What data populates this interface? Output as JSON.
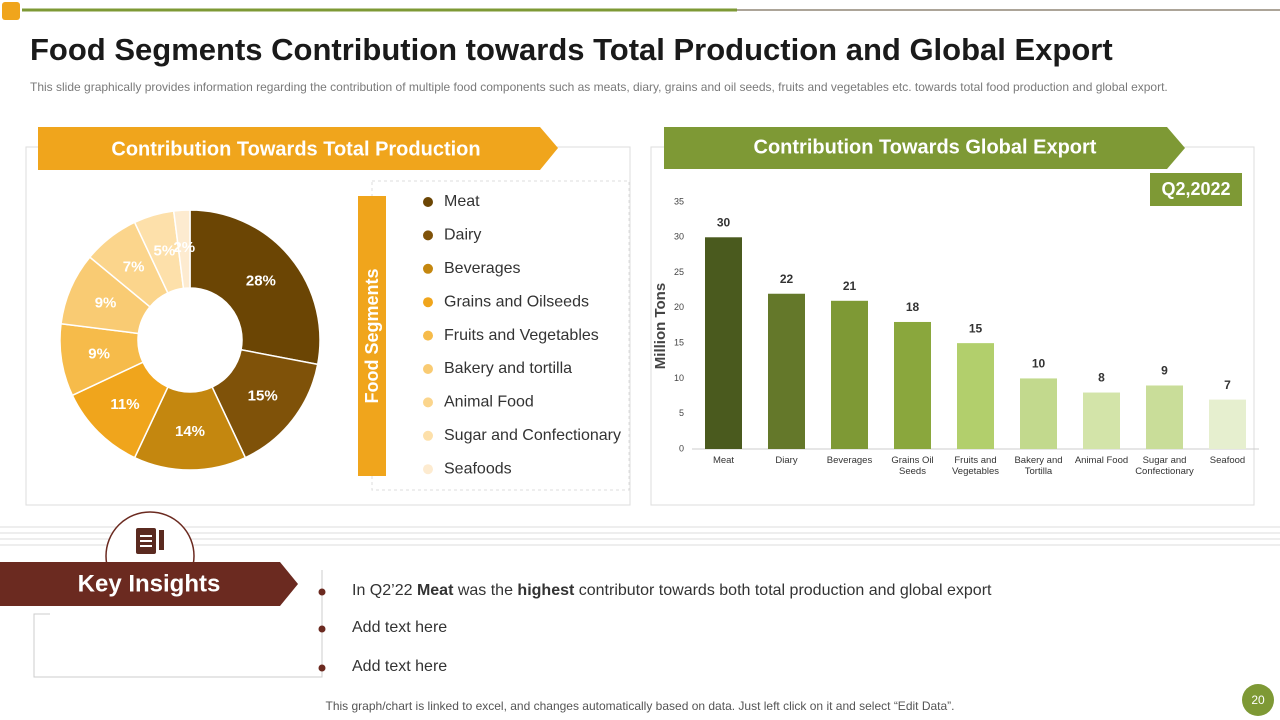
{
  "title": "Food Segments Contribution towards Total Production and Global Export",
  "subtitle": "This slide graphically provides information regarding the contribution of multiple food components such as meats, diary, grains and oil seeds, fruits and vegetables etc. towards total food production and global export.",
  "chart_data": [
    {
      "type": "pie",
      "title": "Contribution Towards Total Production",
      "legend_title": "Food Segments",
      "categories": [
        "Meat",
        "Dairy",
        "Beverages",
        "Grains and Oilseeds",
        "Fruits and Vegetables",
        "Bakery and tortilla",
        "Animal Food",
        "Sugar and Confectionary",
        "Seafoods"
      ],
      "values": [
        28,
        15,
        14,
        11,
        9,
        9,
        7,
        5,
        2
      ],
      "value_labels": [
        "28%",
        "15%",
        "14%",
        "11%",
        "9%",
        "9%",
        "7%",
        "5%",
        "2%"
      ],
      "colors": [
        "#6b4504",
        "#7f5209",
        "#c4870f",
        "#f0a51c",
        "#f6bb4a",
        "#f9cb73",
        "#fbd58c",
        "#fde0aa",
        "#fdebd0"
      ]
    },
    {
      "type": "bar",
      "title": "Contribution Towards Global Export",
      "badge": "Q2,2022",
      "y_label": "Million Tons",
      "categories": [
        "Meat",
        "Diary",
        "Beverages",
        "Grains Oil Seeds",
        "Fruits and Vegetables",
        "Bakery and Tortilla",
        "Animal Food",
        "Sugar and Confectionary",
        "Seafood"
      ],
      "values": [
        30,
        22,
        21,
        18,
        15,
        10,
        8,
        9,
        7
      ],
      "colors": [
        "#4a5a1e",
        "#64782a",
        "#7e9935",
        "#8aa73d",
        "#b2cf6c",
        "#c2d98d",
        "#d3e4a9",
        "#c9dd99",
        "#e6efcf"
      ],
      "ylim": [
        0,
        35
      ],
      "yticks": [
        0,
        5,
        10,
        15,
        20,
        25,
        30,
        35
      ]
    }
  ],
  "insights": {
    "title": "Key Insights",
    "items": [
      [
        "In Q2’22 ",
        "Meat",
        " was the ",
        "highest",
        " contributor towards both total production and global export"
      ],
      [
        "Add text here"
      ],
      [
        "Add text here"
      ]
    ]
  },
  "footer": "This graph/chart is linked to excel, and changes automatically based on data. Just left click on it and select “Edit Data”.",
  "page_number": "20"
}
